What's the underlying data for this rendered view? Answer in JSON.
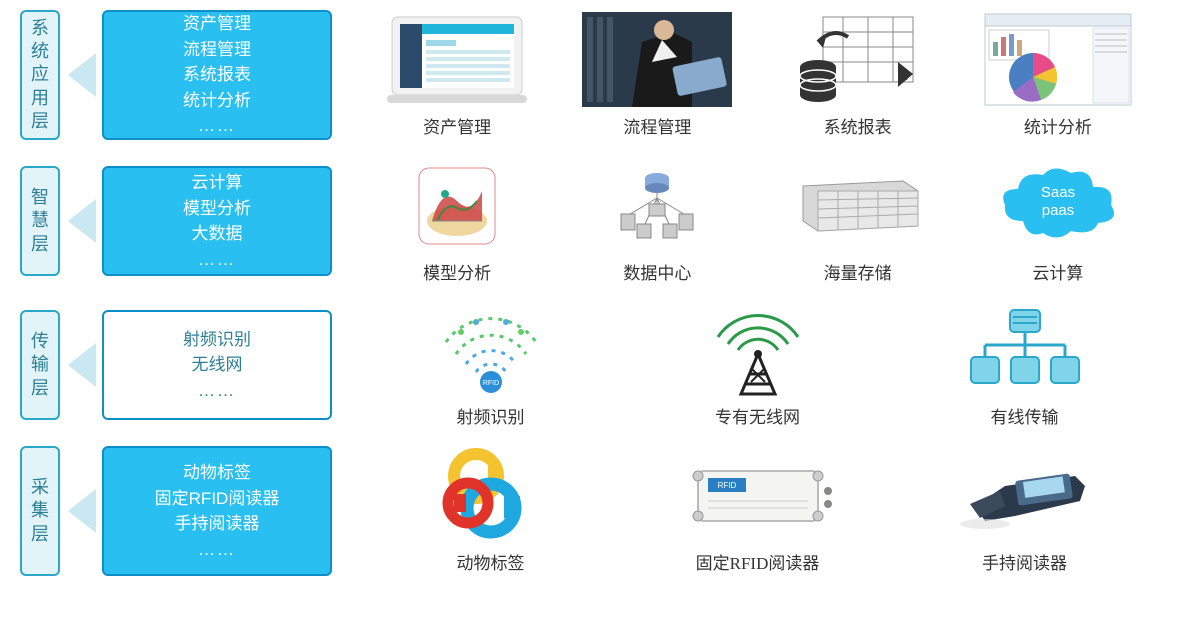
{
  "colors": {
    "label_border": "#2aa7c9",
    "label_bg": "#e3f4f9",
    "label_text": "#2d7f96",
    "box1_bg": "#29c0f1",
    "box1_border": "#0d8fc9",
    "box2_bg": "#29c0f1",
    "box2_border": "#0d8fc9",
    "box3_bg": "#ffffff",
    "box3_border": "#0d8fc9",
    "box3_text": "#2d7f96",
    "box4_bg": "#29c0f1",
    "box4_border": "#0d8fc9",
    "arrow": "#c9e8f2",
    "body_bg": "#ffffff",
    "caption": "#333333",
    "cloud": "#29c0f1"
  },
  "layers": [
    {
      "id": "app",
      "label": "系统应用层",
      "box_lines": [
        "资产管理",
        "流程管理",
        "系统报表",
        "统计分析",
        "……"
      ],
      "box_style": "filled",
      "items": [
        {
          "icon": "laptop-dashboard",
          "caption": "资产管理"
        },
        {
          "icon": "businessman-tablet",
          "caption": "流程管理"
        },
        {
          "icon": "spreadsheet-db",
          "caption": "系统报表"
        },
        {
          "icon": "pie-chart-app",
          "caption": "统计分析"
        }
      ]
    },
    {
      "id": "intel",
      "label": "智慧层",
      "box_lines": [
        "云计算",
        "模型分析",
        "大数据",
        "……"
      ],
      "box_style": "filled",
      "items": [
        {
          "icon": "model-3d",
          "caption": "模型分析"
        },
        {
          "icon": "data-center",
          "caption": "数据中心"
        },
        {
          "icon": "storage-rack",
          "caption": "海量存储"
        },
        {
          "icon": "cloud-saas",
          "caption": "云计算",
          "cloud_text": "Saas\npaas"
        }
      ]
    },
    {
      "id": "trans",
      "label": "传输层",
      "box_lines": [
        "射频识别",
        "无线网",
        "……"
      ],
      "box_style": "outline",
      "items": [
        {
          "icon": "rfid-waves",
          "caption": "射频识别"
        },
        {
          "icon": "antenna-tower",
          "caption": "专有无线网"
        },
        {
          "icon": "org-chart",
          "caption": "有线传输"
        }
      ]
    },
    {
      "id": "collect",
      "label": "采集层",
      "box_lines": [
        "动物标签",
        "固定RFID阅读器",
        "手持阅读器",
        "……"
      ],
      "box_style": "filled",
      "items": [
        {
          "icon": "rfid-tags",
          "caption": "动物标签"
        },
        {
          "icon": "rfid-reader-box",
          "caption": "固定RFID阅读器"
        },
        {
          "icon": "handheld-reader",
          "caption": "手持阅读器"
        }
      ]
    }
  ]
}
